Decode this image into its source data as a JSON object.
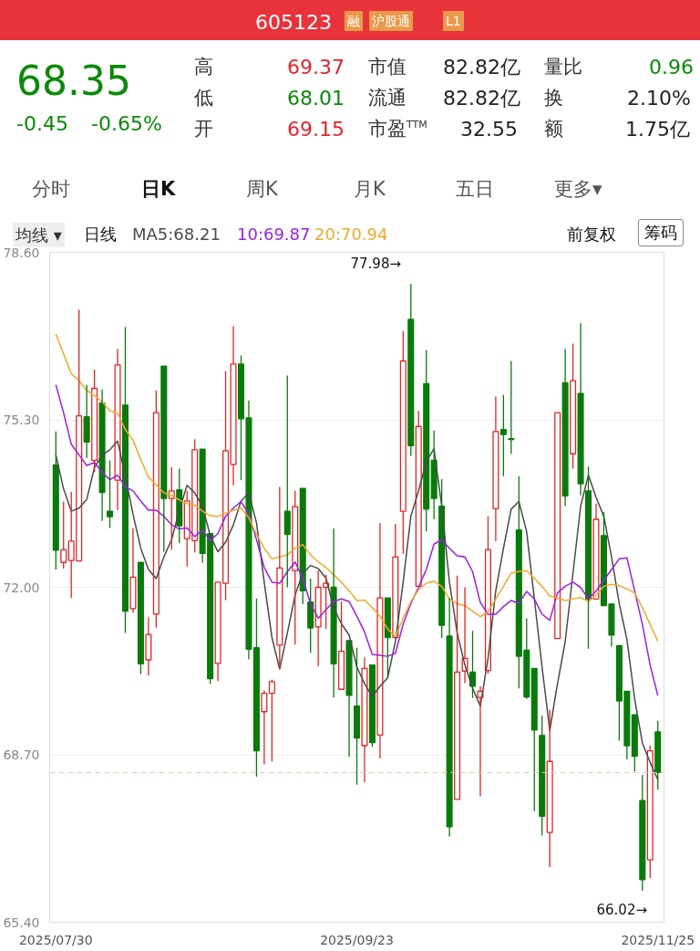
{
  "chart_data": {
    "type": "candlestick",
    "title": "605123",
    "annotations": [
      "融",
      "沪股通",
      "L1",
      "68.35",
      "-0.45",
      "-0.65%",
      "高",
      "69.37",
      "低",
      "68.01",
      "开",
      "69.15",
      "市值",
      "82.82亿",
      "流通",
      "82.82亿",
      "市盈$^{TTM}$",
      "32.55",
      "量比",
      "0.96",
      "换",
      "2.10%",
      "额",
      "1.75亿",
      "分时",
      "日K",
      "周K",
      "月K",
      "五日",
      "更多▾",
      "均线 ▾",
      "日线",
      "前复权",
      "筹码",
      "77.98→",
      "66.02→"
    ],
    "categories": [
      "2025/07/30",
      null,
      null,
      null,
      null,
      null,
      null,
      null,
      null,
      null,
      null,
      null,
      null,
      null,
      null,
      null,
      null,
      null,
      null,
      null,
      null,
      null,
      null,
      null,
      null,
      null,
      null,
      null,
      null,
      null,
      null,
      null,
      null,
      null,
      null,
      null,
      null,
      null,
      null,
      "2025/09/23",
      null,
      null,
      null,
      null,
      null,
      null,
      null,
      null,
      null,
      null,
      null,
      null,
      null,
      null,
      null,
      null,
      null,
      null,
      null,
      null,
      null,
      null,
      null,
      null,
      null,
      null,
      null,
      null,
      null,
      null,
      null,
      null,
      null,
      null,
      null,
      null,
      null,
      null,
      "2025/11/25"
    ],
    "ohlc": [
      [
        74.41,
        75.07,
        72.35,
        72.73
      ],
      [
        72.49,
        73.69,
        72.37,
        72.74
      ],
      [
        72.53,
        73.88,
        71.79,
        72.91
      ],
      [
        72.52,
        77.47,
        72.52,
        75.38
      ],
      [
        75.36,
        75.99,
        74.55,
        74.86
      ],
      [
        74.5,
        76.29,
        74.27,
        75.92
      ],
      [
        75.63,
        75.9,
        73.31,
        73.87
      ],
      [
        73.5,
        74.5,
        73.17,
        73.39
      ],
      [
        74.11,
        76.7,
        73.52,
        76.38
      ],
      [
        75.59,
        77.13,
        71.1,
        71.53
      ],
      [
        71.58,
        73.17,
        71.5,
        72.2
      ],
      [
        72.49,
        72.49,
        70.29,
        70.49
      ],
      [
        70.57,
        71.41,
        70.26,
        71.07
      ],
      [
        71.47,
        75.88,
        71.21,
        75.44
      ],
      [
        76.36,
        76.36,
        72.7,
        73.75
      ],
      [
        73.75,
        74.37,
        72.74,
        73.9
      ],
      [
        73.92,
        74.34,
        72.87,
        73.21
      ],
      [
        72.96,
        73.9,
        72.41,
        73.7
      ],
      [
        72.92,
        74.92,
        72.69,
        74.71
      ],
      [
        74.72,
        74.72,
        72.48,
        72.67
      ],
      [
        73.06,
        73.06,
        70.1,
        70.2
      ],
      [
        70.5,
        72.1,
        70.15,
        72.1
      ],
      [
        72.08,
        76.26,
        71.75,
        74.69
      ],
      [
        74.42,
        77.15,
        74.01,
        76.4
      ],
      [
        76.4,
        76.57,
        74.11,
        75.32
      ],
      [
        75.34,
        75.68,
        70.58,
        70.78
      ],
      [
        70.81,
        71.78,
        68.27,
        68.78
      ],
      [
        69.55,
        69.97,
        68.51,
        69.91
      ],
      [
        69.91,
        70.18,
        68.57,
        70.14
      ],
      [
        70.86,
        73.98,
        70.39,
        72.38
      ],
      [
        73.5,
        76.17,
        72.0,
        73.04
      ],
      [
        72.33,
        73.9,
        70.87,
        73.59
      ],
      [
        73.95,
        73.95,
        71.67,
        71.93
      ],
      [
        71.71,
        72.17,
        70.71,
        71.2
      ],
      [
        71.22,
        72.33,
        70.45,
        72.0
      ],
      [
        72.0,
        72.25,
        71.18,
        72.08
      ],
      [
        72.0,
        73.16,
        69.83,
        70.49
      ],
      [
        69.99,
        71.72,
        69.99,
        70.74
      ],
      [
        70.95,
        70.95,
        68.66,
        69.87
      ],
      [
        69.66,
        70.81,
        68.11,
        69.03
      ],
      [
        68.88,
        70.62,
        68.16,
        70.4
      ],
      [
        70.47,
        70.47,
        68.86,
        68.94
      ],
      [
        69.09,
        73.27,
        68.63,
        71.79
      ],
      [
        71.79,
        71.79,
        70.22,
        71.01
      ],
      [
        71.01,
        73.25,
        71.01,
        72.6
      ],
      [
        73.5,
        77.05,
        72.66,
        76.46
      ],
      [
        77.28,
        77.98,
        74.59,
        74.79
      ],
      [
        72.02,
        75.48,
        72.02,
        75.17
      ],
      [
        76.01,
        76.67,
        73.1,
        73.54
      ],
      [
        74.5,
        75.09,
        73.34,
        73.75
      ],
      [
        73.6,
        74.13,
        71.0,
        71.25
      ],
      [
        71.04,
        71.79,
        67.09,
        67.28
      ],
      [
        67.82,
        72.23,
        67.82,
        70.33
      ],
      [
        70.35,
        72.0,
        70.11,
        70.6
      ],
      [
        70.33,
        71.14,
        69.82,
        70.05
      ],
      [
        69.83,
        70.05,
        67.88,
        69.95
      ],
      [
        70.36,
        73.4,
        70.3,
        72.74
      ],
      [
        73.55,
        75.76,
        72.91,
        75.07
      ],
      [
        75.11,
        75.79,
        74.19,
        75.01
      ],
      [
        74.93,
        76.46,
        74.63,
        74.91
      ],
      [
        73.13,
        74.19,
        70.01,
        70.64
      ],
      [
        70.76,
        71.39,
        69.8,
        69.84
      ],
      [
        70.4,
        70.4,
        67.59,
        69.19
      ],
      [
        69.08,
        69.47,
        67.11,
        67.49
      ],
      [
        67.17,
        69.59,
        66.49,
        68.57
      ],
      [
        70.99,
        75.44,
        70.99,
        75.44
      ],
      [
        76.03,
        76.7,
        73.6,
        73.8
      ],
      [
        74.63,
        76.8,
        74.34,
        76.07
      ],
      [
        75.82,
        77.2,
        73.81,
        74.04
      ],
      [
        73.9,
        74.38,
        70.79,
        71.77
      ],
      [
        71.77,
        73.65,
        71.77,
        73.34
      ],
      [
        73.02,
        73.48,
        71.64,
        71.64
      ],
      [
        71.67,
        71.67,
        70.83,
        71.06
      ],
      [
        70.85,
        70.85,
        68.98,
        69.76
      ],
      [
        69.95,
        69.95,
        68.61,
        68.88
      ],
      [
        69.49,
        69.49,
        68.37,
        68.67
      ],
      [
        67.8,
        68.3,
        66.02,
        66.24
      ],
      [
        66.63,
        68.88,
        66.27,
        68.78
      ],
      [
        69.15,
        69.37,
        68.01,
        68.35
      ]
    ],
    "series": [
      {
        "name": "MA5:68.21",
        "type": "line",
        "color": "#4a4a4a",
        "values": [
          74.61,
          73.94,
          73.5,
          73.56,
          73.73,
          74.36,
          74.61,
          74.71,
          74.88,
          74.19,
          73.44,
          72.77,
          72.35,
          72.17,
          72.6,
          72.94,
          73.52,
          74.01,
          73.86,
          73.6,
          73.02,
          72.7,
          72.89,
          73.23,
          73.7,
          73.86,
          73.27,
          72.1,
          71.01,
          70.39,
          71.1,
          71.85,
          72.27,
          72.43,
          72.37,
          72.18,
          71.6,
          71.28,
          71.06,
          70.43,
          70.1,
          69.85,
          70.05,
          70.22,
          70.93,
          72.1,
          73.4,
          73.9,
          74.48,
          74.73,
          73.6,
          72.1,
          71.1,
          70.47,
          70.01,
          69.66,
          70.6,
          71.93,
          72.77,
          73.54,
          73.69,
          73.1,
          71.77,
          70.43,
          69.18,
          70.1,
          70.93,
          72.27,
          73.6,
          74.21,
          73.77,
          73.4,
          72.6,
          71.68,
          70.97,
          69.8,
          68.93,
          68.55,
          68.21
        ]
      },
      {
        "name": "10:69.87",
        "type": "line",
        "color": "#9b1fe8",
        "values": [
          75.99,
          75.44,
          74.82,
          74.61,
          74.4,
          74.46,
          74.27,
          74.12,
          74.21,
          73.98,
          73.9,
          73.7,
          73.52,
          73.52,
          73.4,
          73.23,
          73.15,
          73.17,
          73.0,
          73.13,
          72.92,
          73.06,
          73.4,
          73.56,
          73.69,
          73.44,
          72.94,
          72.39,
          72.1,
          72.08,
          72.31,
          72.5,
          72.17,
          71.68,
          71.39,
          71.56,
          71.72,
          71.77,
          71.72,
          71.43,
          71.12,
          70.68,
          70.66,
          70.64,
          70.7,
          71.27,
          71.68,
          72.0,
          72.35,
          72.85,
          72.94,
          72.77,
          72.62,
          72.6,
          72.31,
          71.7,
          71.47,
          71.47,
          71.62,
          71.74,
          71.68,
          71.92,
          71.77,
          71.47,
          71.35,
          71.89,
          72.02,
          72.1,
          72.0,
          71.77,
          71.93,
          72.14,
          72.35,
          72.56,
          72.58,
          71.93,
          71.27,
          70.47,
          69.87
        ]
      },
      {
        "name": "20:70.94",
        "type": "line",
        "color": "#f0a92a",
        "values": [
          76.99,
          76.6,
          76.21,
          76.07,
          75.88,
          75.78,
          75.65,
          75.48,
          75.43,
          75.11,
          74.9,
          74.52,
          74.17,
          74.02,
          73.86,
          73.81,
          73.72,
          73.65,
          73.62,
          73.5,
          73.41,
          73.4,
          73.46,
          73.52,
          73.56,
          73.37,
          73.04,
          72.77,
          72.56,
          72.6,
          72.64,
          72.77,
          72.84,
          72.64,
          72.5,
          72.39,
          72.25,
          72.1,
          71.93,
          71.74,
          71.75,
          71.6,
          71.43,
          71.18,
          71.03,
          71.39,
          71.72,
          71.95,
          72.08,
          72.12,
          72.02,
          71.77,
          71.67,
          71.64,
          71.53,
          71.42,
          71.52,
          71.77,
          72.02,
          72.28,
          72.31,
          72.33,
          72.18,
          72.02,
          71.83,
          71.79,
          71.74,
          71.77,
          71.8,
          71.72,
          71.85,
          72.02,
          72.06,
          72.03,
          71.97,
          71.89,
          71.6,
          71.27,
          70.94
        ]
      }
    ],
    "ylim": [
      65.4,
      78.6
    ],
    "yticks": [
      {
        "value": 65.4,
        "label": "65.40"
      },
      {
        "value": 68.7,
        "label": "68.70"
      },
      {
        "value": 72.0,
        "label": "72.00"
      },
      {
        "value": 75.3,
        "label": "75.30"
      },
      {
        "value": 78.6,
        "label": "78.60"
      }
    ],
    "ref_lines": [
      {
        "axis": "y",
        "value": 68.35,
        "color": "#d8cfb0",
        "line_style": "dashed"
      }
    ],
    "grid": "y",
    "legend": "top left"
  }
}
